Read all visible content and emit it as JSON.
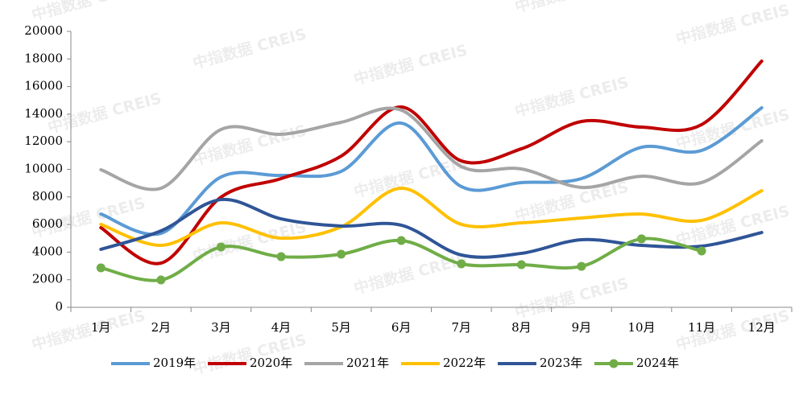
{
  "chart_data": {
    "type": "line",
    "smooth": true,
    "watermark": "中指数据 CREIS",
    "categories": [
      "1月",
      "2月",
      "3月",
      "4月",
      "5月",
      "6月",
      "7月",
      "8月",
      "9月",
      "10月",
      "11月",
      "12月"
    ],
    "ylim": [
      0,
      20000
    ],
    "yticks": [
      0,
      2000,
      4000,
      6000,
      8000,
      10000,
      12000,
      14000,
      16000,
      18000,
      20000
    ],
    "legend": "bottom",
    "series": [
      {
        "name": "2019年",
        "color": "#5b9bd5",
        "markers": false,
        "values": [
          6760,
          5360,
          9450,
          9560,
          9850,
          13350,
          8750,
          9040,
          9330,
          11600,
          11370,
          14460
        ]
      },
      {
        "name": "2020年",
        "color": "#c00000",
        "markers": false,
        "values": [
          5770,
          3200,
          7990,
          9330,
          10960,
          14520,
          10610,
          11490,
          13470,
          13060,
          13240,
          17840
        ]
      },
      {
        "name": "2021年",
        "color": "#a5a5a5",
        "markers": false,
        "values": [
          9970,
          8630,
          12890,
          12540,
          13410,
          14290,
          10200,
          10030,
          8690,
          9500,
          9040,
          12070
        ]
      },
      {
        "name": "2022年",
        "color": "#ffc000",
        "markers": false,
        "values": [
          6010,
          4490,
          6120,
          5010,
          5830,
          8630,
          6010,
          6120,
          6470,
          6760,
          6300,
          8450
        ]
      },
      {
        "name": "2023年",
        "color": "#2f5597",
        "markers": false,
        "values": [
          4200,
          5540,
          7810,
          6410,
          5890,
          5950,
          3790,
          3910,
          4900,
          4490,
          4430,
          5420
        ]
      },
      {
        "name": "2024年",
        "color": "#70ad47",
        "markers": true,
        "values": [
          2860,
          1980,
          4370,
          3670,
          3850,
          4840,
          3150,
          3090,
          2970,
          4960,
          4080,
          null
        ]
      }
    ]
  }
}
